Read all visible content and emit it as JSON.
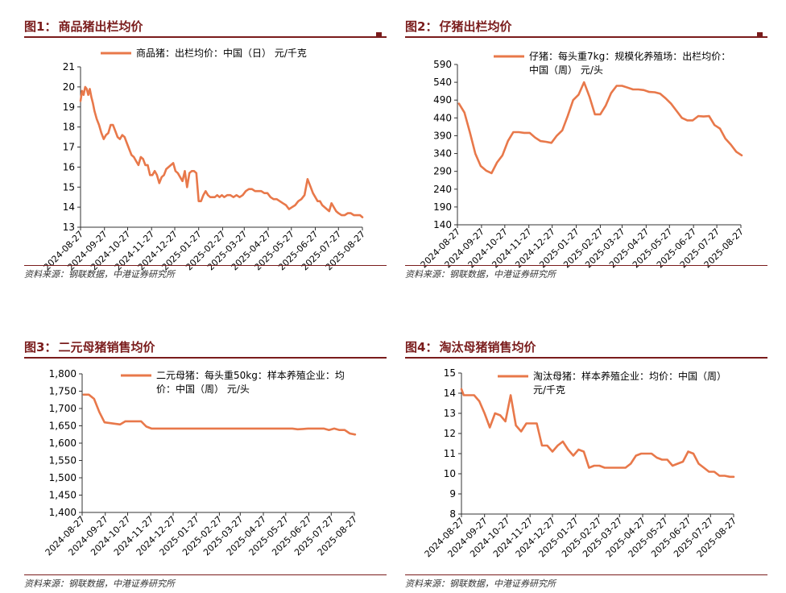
{
  "charts": [
    {
      "fig_label": "图1：",
      "title": "商品猪出栏均价",
      "legend": [
        "商品猪：出栏均价：中国（日） 元/千克"
      ],
      "source": "资料来源：钢联数据，中港证券研究所",
      "y_ticks": [
        "21",
        "20",
        "19",
        "18",
        "17",
        "16",
        "15",
        "14",
        "13"
      ],
      "x_ticks": [
        "2024-08-27",
        "2024-09-27",
        "2024-10-27",
        "2024-11-27",
        "2024-12-27",
        "2025-01-27",
        "2025-02-27",
        "2025-03-27",
        "2025-04-27",
        "2025-05-27",
        "2025-06-27",
        "2025-07-27",
        "2025-08-27"
      ]
    },
    {
      "fig_label": "图2：",
      "title": "仔猪出栏均价",
      "legend": [
        "仔猪：每头重7kg：规模化养殖场：出栏均价：",
        "中国（周） 元/头"
      ],
      "source": "资料来源：钢联数据，中港证券研究所",
      "y_ticks": [
        "590",
        "540",
        "490",
        "440",
        "390",
        "340",
        "290",
        "240",
        "190",
        "140"
      ],
      "x_ticks": [
        "2024-08-27",
        "2024-09-27",
        "2024-10-27",
        "2024-11-27",
        "2024-12-27",
        "2025-01-27",
        "2025-02-27",
        "2025-03-27",
        "2025-04-27",
        "2025-05-27",
        "2025-06-27",
        "2025-07-27",
        "2025-08-27"
      ]
    },
    {
      "fig_label": "图3：",
      "title": "二元母猪销售均价",
      "legend": [
        "二元母猪：每头重50kg：样本养殖企业：均",
        "价：中国（周） 元/头"
      ],
      "source": "资料来源：钢联数据，中港证券研究所",
      "y_ticks": [
        "1,800",
        "1,750",
        "1,700",
        "1,650",
        "1,600",
        "1,550",
        "1,500",
        "1,450",
        "1,400"
      ],
      "x_ticks": [
        "2024-08-27",
        "2024-09-27",
        "2024-10-27",
        "2024-11-27",
        "2024-12-27",
        "2025-01-27",
        "2025-02-27",
        "2025-03-27",
        "2025-04-27",
        "2025-05-27",
        "2025-06-27",
        "2025-07-27",
        "2025-08-27"
      ]
    },
    {
      "fig_label": "图4：",
      "title": "淘汰母猪销售均价",
      "legend": [
        "淘汰母猪：样本养殖企业：均价：中国（周）",
        "元/千克"
      ],
      "source": "资料来源：钢联数据，中港证券研究所",
      "y_ticks": [
        "15",
        "14",
        "13",
        "12",
        "11",
        "10",
        "9",
        "8"
      ],
      "x_ticks": [
        "2024-08-27",
        "2024-09-27",
        "2024-10-27",
        "2024-11-27",
        "2024-12-27",
        "2025-01-27",
        "2025-02-27",
        "2025-03-27",
        "2025-04-27",
        "2025-05-27",
        "2025-06-27",
        "2025-07-27",
        "2025-08-27"
      ]
    }
  ],
  "line_color": "#e8784a",
  "chart_data": [
    {
      "type": "line",
      "title": "商品猪出栏均价",
      "series": [
        {
          "name": "商品猪：出栏均价：中国（日） 元/千克",
          "x": [
            "2024-08-27",
            "2024-08-29",
            "2024-08-31",
            "2024-09-02",
            "2024-09-04",
            "2024-09-06",
            "2024-09-08",
            "2024-09-10",
            "2024-09-12",
            "2024-09-14",
            "2024-09-17",
            "2024-09-20",
            "2024-09-23",
            "2024-09-26",
            "2024-09-29",
            "2024-10-02",
            "2024-10-05",
            "2024-10-08",
            "2024-10-11",
            "2024-10-14",
            "2024-10-17",
            "2024-10-20",
            "2024-10-23",
            "2024-10-26",
            "2024-10-29",
            "2024-11-01",
            "2024-11-04",
            "2024-11-07",
            "2024-11-10",
            "2024-11-13",
            "2024-11-16",
            "2024-11-19",
            "2024-11-22",
            "2024-11-25",
            "2024-11-28",
            "2024-12-01",
            "2024-12-04",
            "2024-12-07",
            "2024-12-10",
            "2024-12-13",
            "2024-12-16",
            "2024-12-19",
            "2024-12-22",
            "2024-12-25",
            "2024-12-28",
            "2024-12-31",
            "2025-01-03",
            "2025-01-06",
            "2025-01-09",
            "2025-01-12",
            "2025-01-15",
            "2025-01-18",
            "2025-01-21",
            "2025-01-24",
            "2025-01-27",
            "2025-01-30",
            "2025-02-02",
            "2025-02-05",
            "2025-02-08",
            "2025-02-11",
            "2025-02-14",
            "2025-02-17",
            "2025-02-20",
            "2025-02-23",
            "2025-02-26",
            "2025-03-01",
            "2025-03-05",
            "2025-03-09",
            "2025-03-13",
            "2025-03-17",
            "2025-03-21",
            "2025-03-25",
            "2025-03-29",
            "2025-04-02",
            "2025-04-06",
            "2025-04-10",
            "2025-04-14",
            "2025-04-18",
            "2025-04-22",
            "2025-04-26",
            "2025-04-30",
            "2025-05-04",
            "2025-05-08",
            "2025-05-12",
            "2025-05-16",
            "2025-05-20",
            "2025-05-24",
            "2025-05-28",
            "2025-06-01",
            "2025-06-05",
            "2025-06-09",
            "2025-06-13",
            "2025-06-17",
            "2025-06-21",
            "2025-06-24",
            "2025-06-27",
            "2025-06-30",
            "2025-07-03",
            "2025-07-06",
            "2025-07-09",
            "2025-07-12",
            "2025-07-15",
            "2025-07-18",
            "2025-07-21",
            "2025-07-24",
            "2025-07-27",
            "2025-07-31",
            "2025-08-04",
            "2025-08-08",
            "2025-08-12",
            "2025-08-16",
            "2025-08-20",
            "2025-08-24",
            "2025-08-27"
          ],
          "values": [
            19.3,
            19.8,
            19.6,
            20.0,
            19.9,
            19.6,
            19.9,
            19.5,
            19.2,
            18.8,
            18.4,
            18.1,
            17.7,
            17.4,
            17.6,
            17.7,
            18.1,
            18.1,
            17.8,
            17.5,
            17.4,
            17.6,
            17.5,
            17.2,
            16.9,
            16.6,
            16.5,
            16.3,
            16.1,
            16.5,
            16.4,
            16.1,
            16.1,
            15.6,
            15.6,
            15.8,
            15.6,
            15.2,
            15.5,
            15.6,
            15.9,
            16.0,
            16.1,
            16.2,
            15.8,
            15.7,
            15.5,
            15.3,
            15.8,
            15.0,
            15.7,
            15.8,
            15.8,
            15.7,
            14.3,
            14.3,
            14.6,
            14.8,
            14.6,
            14.5,
            14.5,
            14.5,
            14.6,
            14.5,
            14.6,
            14.5,
            14.6,
            14.6,
            14.5,
            14.6,
            14.5,
            14.6,
            14.8,
            14.9,
            14.9,
            14.8,
            14.8,
            14.8,
            14.7,
            14.7,
            14.5,
            14.4,
            14.4,
            14.3,
            14.2,
            14.1,
            13.9,
            14.0,
            14.1,
            14.3,
            14.4,
            14.6,
            15.4,
            15.0,
            14.7,
            14.5,
            14.3,
            14.3,
            14.1,
            14.0,
            13.9,
            13.8,
            14.2,
            14.0,
            13.8,
            13.7,
            13.6,
            13.6,
            13.7,
            13.7,
            13.6,
            13.6,
            13.6,
            13.5
          ]
        }
      ],
      "xlim": [
        "2024-08-27",
        "2025-08-27"
      ],
      "ylim": [
        13,
        21
      ],
      "grid": false,
      "legend_position": "top-right"
    },
    {
      "type": "line",
      "title": "仔猪出栏均价",
      "series": [
        {
          "name": "仔猪：每头重7kg：规模化养殖场：出栏均价：中国（周） 元/头",
          "x": [
            "2024-08-29",
            "2024-09-05",
            "2024-09-12",
            "2024-09-19",
            "2024-09-26",
            "2024-10-03",
            "2024-10-10",
            "2024-10-17",
            "2024-10-24",
            "2024-10-31",
            "2024-11-07",
            "2024-11-14",
            "2024-11-21",
            "2024-11-28",
            "2024-12-05",
            "2024-12-12",
            "2024-12-19",
            "2024-12-26",
            "2025-01-02",
            "2025-01-09",
            "2025-01-16",
            "2025-01-23",
            "2025-01-30",
            "2025-02-06",
            "2025-02-13",
            "2025-02-20",
            "2025-02-27",
            "2025-03-06",
            "2025-03-13",
            "2025-03-20",
            "2025-03-27",
            "2025-04-03",
            "2025-04-10",
            "2025-04-17",
            "2025-04-24",
            "2025-05-01",
            "2025-05-08",
            "2025-05-15",
            "2025-05-22",
            "2025-05-29",
            "2025-06-05",
            "2025-06-12",
            "2025-06-19",
            "2025-06-26",
            "2025-07-03",
            "2025-07-10",
            "2025-07-17",
            "2025-07-24",
            "2025-07-31",
            "2025-08-07",
            "2025-08-14",
            "2025-08-21",
            "2025-08-28"
          ],
          "values": [
            480,
            455,
            400,
            340,
            305,
            292,
            285,
            315,
            335,
            375,
            400,
            400,
            398,
            398,
            385,
            375,
            373,
            370,
            390,
            405,
            445,
            490,
            505,
            540,
            500,
            450,
            450,
            475,
            510,
            530,
            530,
            525,
            520,
            520,
            518,
            513,
            512,
            508,
            495,
            480,
            460,
            440,
            433,
            433,
            445,
            444,
            445,
            420,
            410,
            382,
            365,
            345,
            335
          ]
        }
      ],
      "xlim": [
        "2024-08-27",
        "2025-08-27"
      ],
      "ylim": [
        140,
        590
      ],
      "grid": false,
      "legend_position": "top-right"
    },
    {
      "type": "line",
      "title": "二元母猪销售均价",
      "series": [
        {
          "name": "二元母猪：每头重50kg：样本养殖企业：均价：中国（周） 元/头",
          "x": [
            "2024-08-29",
            "2024-09-05",
            "2024-09-12",
            "2024-09-19",
            "2024-09-26",
            "2024-10-03",
            "2024-10-10",
            "2024-10-17",
            "2024-10-24",
            "2024-10-31",
            "2024-11-07",
            "2024-11-14",
            "2024-11-21",
            "2024-11-28",
            "2024-12-05",
            "2024-12-12",
            "2024-12-19",
            "2024-12-26",
            "2025-01-02",
            "2025-01-09",
            "2025-01-16",
            "2025-01-23",
            "2025-01-30",
            "2025-02-06",
            "2025-02-13",
            "2025-02-20",
            "2025-02-27",
            "2025-03-06",
            "2025-03-13",
            "2025-03-20",
            "2025-03-27",
            "2025-04-03",
            "2025-04-10",
            "2025-04-17",
            "2025-04-24",
            "2025-05-01",
            "2025-05-08",
            "2025-05-15",
            "2025-05-22",
            "2025-05-29",
            "2025-06-05",
            "2025-06-12",
            "2025-06-19",
            "2025-06-26",
            "2025-07-03",
            "2025-07-10",
            "2025-07-17",
            "2025-07-24",
            "2025-07-31",
            "2025-08-07",
            "2025-08-14",
            "2025-08-21",
            "2025-08-28"
          ],
          "values": [
            1740,
            1740,
            1728,
            1690,
            1660,
            1658,
            1656,
            1654,
            1663,
            1663,
            1663,
            1663,
            1648,
            1642,
            1642,
            1642,
            1642,
            1642,
            1642,
            1642,
            1642,
            1642,
            1642,
            1642,
            1642,
            1642,
            1642,
            1642,
            1642,
            1642,
            1642,
            1642,
            1642,
            1642,
            1642,
            1642,
            1642,
            1642,
            1642,
            1642,
            1642,
            1640,
            1641,
            1642,
            1642,
            1642,
            1642,
            1638,
            1642,
            1638,
            1638,
            1628,
            1625
          ]
        }
      ],
      "xlim": [
        "2024-08-27",
        "2025-08-27"
      ],
      "ylim": [
        1400,
        1800
      ],
      "grid": false,
      "legend_position": "top-right"
    },
    {
      "type": "line",
      "title": "淘汰母猪销售均价",
      "series": [
        {
          "name": "淘汰母猪：样本养殖企业：均价：中国（周） 元/千克",
          "x": [
            "2024-08-27",
            "2024-08-30",
            "2024-09-06",
            "2024-09-13",
            "2024-09-20",
            "2024-09-27",
            "2024-10-04",
            "2024-10-11",
            "2024-10-18",
            "2024-10-25",
            "2024-11-01",
            "2024-11-08",
            "2024-11-15",
            "2024-11-22",
            "2024-11-29",
            "2024-12-06",
            "2024-12-13",
            "2024-12-20",
            "2024-12-27",
            "2025-01-03",
            "2025-01-10",
            "2025-01-17",
            "2025-01-24",
            "2025-01-31",
            "2025-02-07",
            "2025-02-14",
            "2025-02-21",
            "2025-02-28",
            "2025-03-07",
            "2025-03-14",
            "2025-03-21",
            "2025-03-28",
            "2025-04-04",
            "2025-04-11",
            "2025-04-18",
            "2025-04-25",
            "2025-05-02",
            "2025-05-09",
            "2025-05-16",
            "2025-05-23",
            "2025-05-30",
            "2025-06-06",
            "2025-06-13",
            "2025-06-20",
            "2025-06-27",
            "2025-07-04",
            "2025-07-11",
            "2025-07-18",
            "2025-07-25",
            "2025-08-01",
            "2025-08-08",
            "2025-08-15",
            "2025-08-22",
            "2025-08-27"
          ],
          "values": [
            14.2,
            13.9,
            13.9,
            13.9,
            13.6,
            13.0,
            12.3,
            13.0,
            12.9,
            12.6,
            13.9,
            12.4,
            12.1,
            12.5,
            12.5,
            12.5,
            11.4,
            11.4,
            11.1,
            11.4,
            11.6,
            11.2,
            10.9,
            11.2,
            11.1,
            10.3,
            10.4,
            10.4,
            10.3,
            10.3,
            10.3,
            10.3,
            10.3,
            10.5,
            10.9,
            11.0,
            11.0,
            11.0,
            10.8,
            10.7,
            10.7,
            10.4,
            10.5,
            10.6,
            11.1,
            11.0,
            10.5,
            10.3,
            10.1,
            10.1,
            9.9,
            9.9,
            9.85,
            9.85
          ]
        }
      ],
      "xlim": [
        "2024-08-27",
        "2025-08-27"
      ],
      "ylim": [
        8,
        15
      ],
      "grid": false,
      "legend_position": "top-right"
    }
  ]
}
